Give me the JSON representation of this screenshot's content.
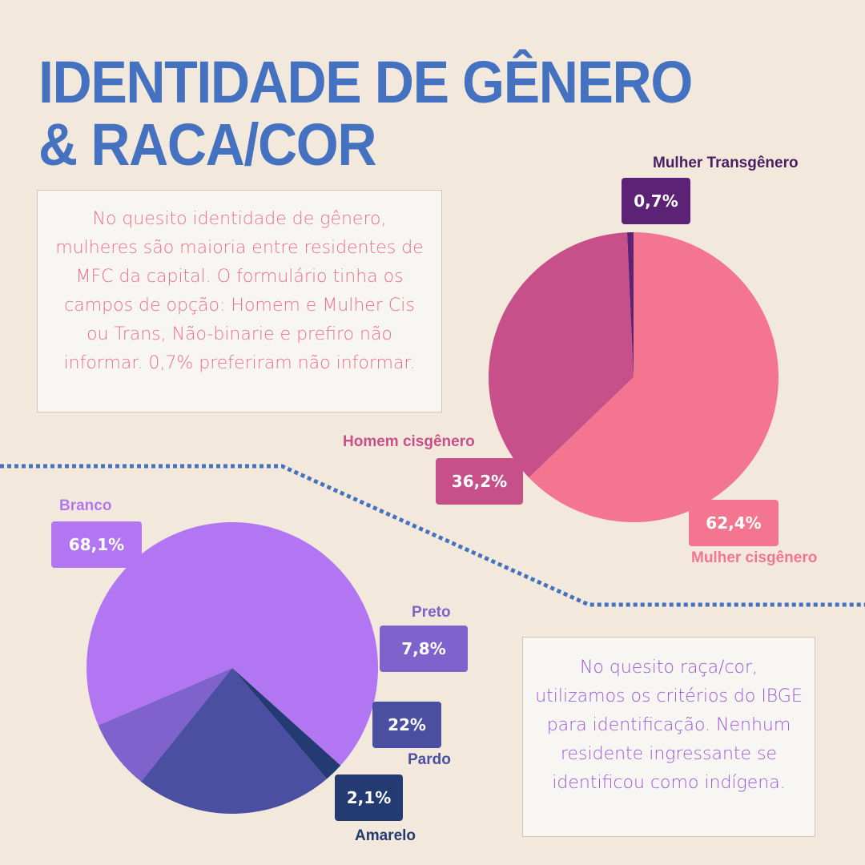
{
  "title": {
    "line1": "IDENTIDADE DE GÊNERO",
    "line2": "& RACA/COR"
  },
  "notes": {
    "gender": "No quesito identidade de gênero, mulheres são maioria entre residentes de MFC da capital. O formulário tinha os campos de opção: Homem e Mulher Cis ou Trans, Não-binarie e prefiro não informar. 0,7% preferiram não informar.",
    "race": "No quesito raça/cor, utilizamos os critérios do IBGE para identificação. Nenhum residente ingressante se identificou como indígena."
  },
  "chart_data": [
    {
      "type": "pie",
      "slices": [
        {
          "label": "Mulher cisgênero",
          "value": 62.4,
          "display": "62,4%",
          "color": "#f4758f"
        },
        {
          "label": "Homem cisgênero",
          "value": 36.2,
          "display": "36,2%",
          "color": "#c8508a"
        },
        {
          "label": "Mulher Transgênero",
          "value": 0.7,
          "display": "0,7%",
          "color": "#5c2275"
        }
      ]
    },
    {
      "type": "pie",
      "slices": [
        {
          "label": "Branco",
          "value": 68.1,
          "display": "68,1%",
          "color": "#b276f2"
        },
        {
          "label": "Preto",
          "value": 7.8,
          "display": "7,8%",
          "color": "#7f62cc"
        },
        {
          "label": "Pardo",
          "value": 22,
          "display": "22%",
          "color": "#4a4fa2"
        },
        {
          "label": "Amarelo",
          "value": 2.1,
          "display": "2,1%",
          "color": "#233a72"
        }
      ]
    }
  ]
}
